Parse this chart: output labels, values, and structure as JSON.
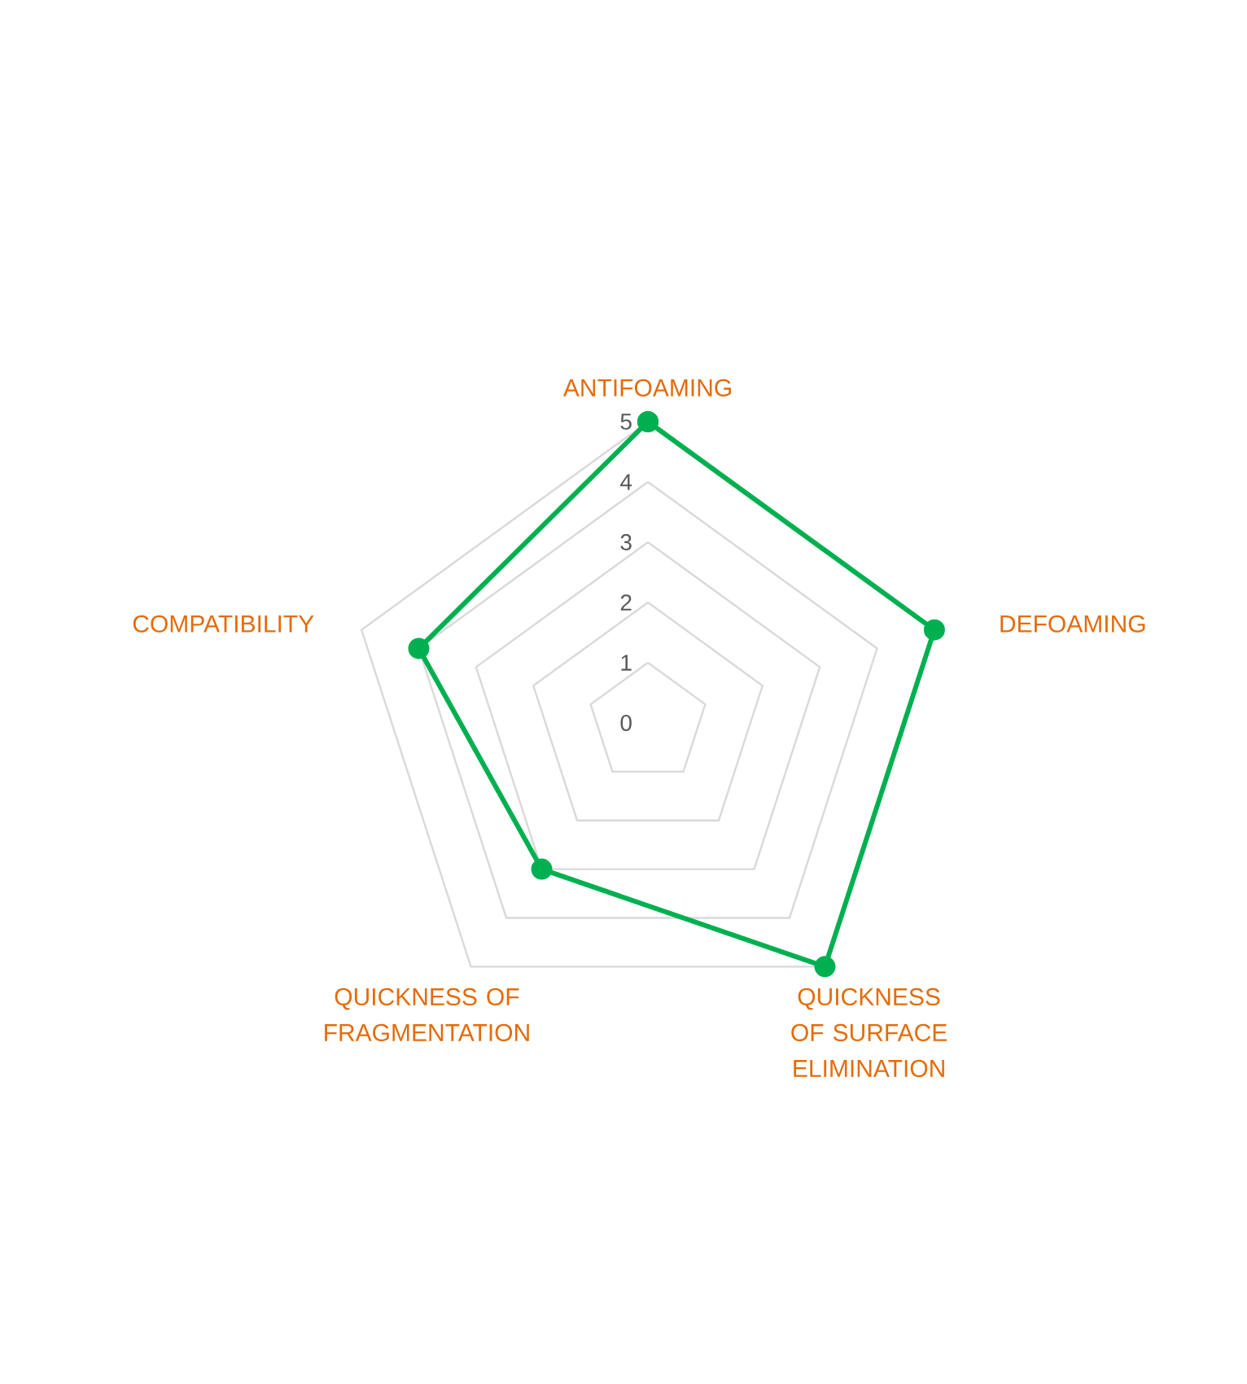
{
  "chart_data": {
    "type": "radar",
    "categories": [
      "ANTIFOAMING",
      "DEFOAMING",
      "QUICKNESS OF SURFACE ELIMINATION",
      "QUICKNESS OF FRAGMENTATION",
      "COMPATIBILITY"
    ],
    "series": [
      {
        "color": "#00b050",
        "values": [
          5,
          5,
          5,
          3,
          4
        ]
      }
    ],
    "ylim": [
      0,
      5
    ],
    "yticks": [
      0,
      1,
      2,
      3,
      4,
      5
    ],
    "grid": true,
    "marker": "circle",
    "line_style": "solid"
  }
}
